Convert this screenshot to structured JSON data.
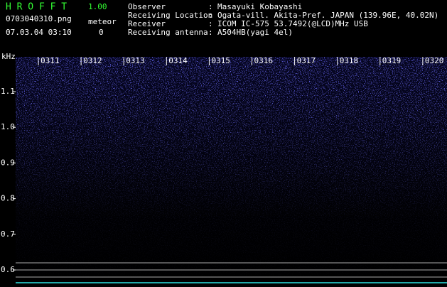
{
  "app": {
    "name": "H R O F F T",
    "version": "1.00"
  },
  "file": "0703040310.png",
  "datetime": "07.03.04 03:10",
  "meteor": {
    "label": "meteor",
    "count": 0
  },
  "info": [
    {
      "label": "Observer",
      "value": "Masayuki Kobayashi"
    },
    {
      "label": "Receiving Location",
      "value": "Ogata-vill. Akita-Pref. JAPAN (139.96E, 40.02N)"
    },
    {
      "label": "Receiver",
      "value": "ICOM IC-575 53.7492(@LCD)MHz USB"
    },
    {
      "label": "Receiving antenna",
      "value": "A504HB(yagi 4el)"
    }
  ],
  "spectrogram": {
    "unit": "kHz",
    "time_labels": [
      "0311",
      "0312",
      "0313",
      "0314",
      "0315",
      "0316",
      "0317",
      "0318",
      "0319",
      "0320"
    ],
    "freq_labels": [
      "1.1",
      "1.0",
      "0.9",
      "0.8",
      "0.7",
      "0.6"
    ]
  }
}
